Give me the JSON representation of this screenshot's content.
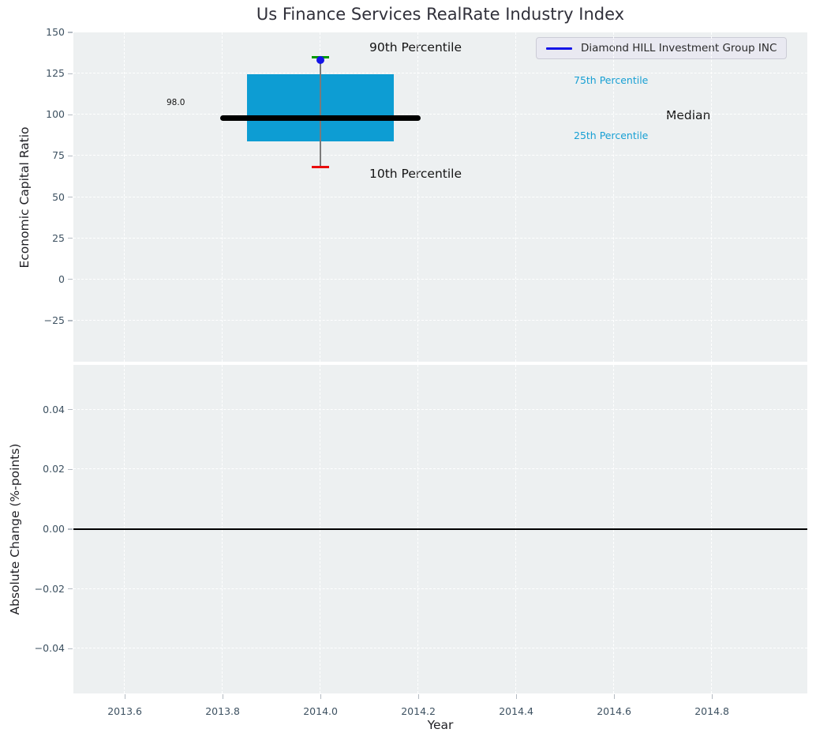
{
  "title": "Us Finance Services RealRate Industry Index",
  "legend": {
    "label": "Diamond HILL Investment Group INC",
    "line_color": "#1414e8"
  },
  "annotations": {
    "p90": "90th Percentile",
    "p10": "10th Percentile",
    "p75": "75th Percentile",
    "p25": "25th Percentile",
    "median": "Median",
    "median_value": "98.0"
  },
  "chart_data": {
    "type": "box",
    "title": "Us Finance Services RealRate Industry Index",
    "xlabel": "Year",
    "xlim": [
      2013.495,
      2014.995
    ],
    "xticks": [
      2013.6,
      2013.8,
      2014.0,
      2014.2,
      2014.4,
      2014.6,
      2014.8
    ],
    "grid": true,
    "legend_position": "upper right",
    "subplots": [
      {
        "ylabel": "Economic Capital Ratio",
        "ylim": [
          -50,
          150
        ],
        "yticks": [
          150,
          125,
          100,
          75,
          50,
          25,
          0,
          -25
        ]
      },
      {
        "ylabel": "Absolute Change (%-points)",
        "ylim": [
          -0.055,
          0.055
        ],
        "yticks": [
          0.04,
          0.02,
          0.0,
          -0.02,
          -0.04
        ],
        "zero_line_y": 0.0
      }
    ],
    "box": {
      "x": 2014.0,
      "box_halfwidth": 0.15,
      "median_halfwidth": 0.205,
      "p10": 68,
      "p25": 84,
      "median": 98.0,
      "p75": 124.5,
      "p90": 135,
      "company_value": 133,
      "colors": {
        "box_fill": "#0d9dd3",
        "median_line": "#000000",
        "whisker": "#7a7a7a",
        "cap_high": "#009a00",
        "cap_low": "#ea0c0c",
        "company_dot": "#1414e8",
        "percentile_text": "#18a0d4"
      }
    }
  }
}
